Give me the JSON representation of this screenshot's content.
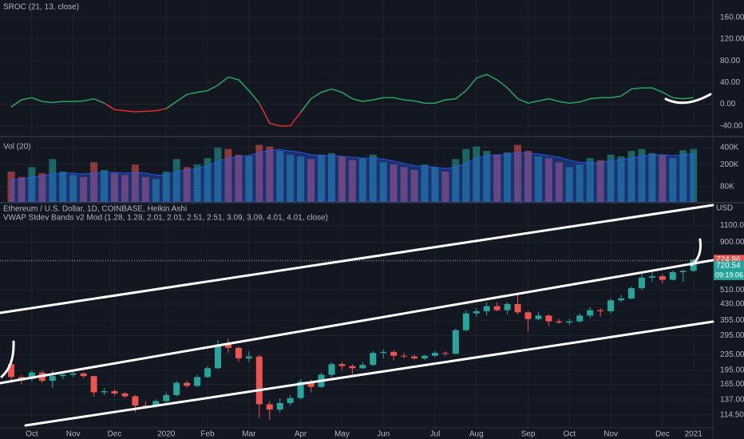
{
  "chart_data": [
    {
      "type": "line",
      "title": "SROC (21, 13, close)",
      "up_color": "#26a65b",
      "down_color": "#e0292b",
      "ylim": [
        -58,
        192
      ],
      "yticks": [
        {
          "value": 160,
          "label": "160.00"
        },
        {
          "value": 120,
          "label": "120.00"
        },
        {
          "value": 80,
          "label": "80.00"
        },
        {
          "value": 40,
          "label": "40.00"
        },
        {
          "value": 0,
          "label": "0.00"
        },
        {
          "value": -40,
          "label": "-40.00"
        }
      ],
      "grid": true,
      "values": [
        -5,
        8,
        12,
        5,
        3,
        5,
        5,
        6,
        10,
        2,
        -10,
        -12,
        -14,
        -13,
        -12,
        -8,
        5,
        18,
        22,
        25,
        35,
        50,
        45,
        25,
        2,
        -35,
        -40,
        -40,
        -15,
        10,
        22,
        28,
        22,
        10,
        5,
        8,
        12,
        12,
        8,
        6,
        2,
        2,
        8,
        10,
        25,
        48,
        55,
        45,
        30,
        10,
        2,
        6,
        10,
        5,
        2,
        4,
        10,
        12,
        12,
        15,
        28,
        30,
        30,
        22,
        12,
        10,
        12
      ]
    },
    {
      "type": "bar",
      "title": "Vol (20)",
      "log": true,
      "ylim": [
        43000,
        614000
      ],
      "yticks": [
        {
          "value": 400000,
          "label": "400K"
        },
        {
          "value": 200000,
          "label": "200K"
        },
        {
          "value": 80000,
          "label": "80K"
        }
      ],
      "grid": true,
      "up_color": "#26a69a",
      "down_color": "#ef5350",
      "ma_color": "#2962ff",
      "values": [
        150000,
        120000,
        180000,
        140000,
        250000,
        150000,
        130000,
        120000,
        220000,
        160000,
        140000,
        130000,
        200000,
        120000,
        110000,
        150000,
        250000,
        180000,
        200000,
        260000,
        400000,
        380000,
        300000,
        280000,
        450000,
        420000,
        350000,
        300000,
        280000,
        250000,
        300000,
        320000,
        280000,
        240000,
        260000,
        300000,
        220000,
        200000,
        180000,
        160000,
        200000,
        180000,
        150000,
        250000,
        380000,
        420000,
        350000,
        300000,
        330000,
        450000,
        350000,
        280000,
        260000,
        220000,
        180000,
        200000,
        260000,
        240000,
        300000,
        280000,
        350000,
        380000,
        320000,
        300000,
        260000,
        360000,
        380000
      ],
      "ma": [
        110000,
        110000,
        120000,
        125000,
        135000,
        140000,
        140000,
        135000,
        140000,
        145000,
        145000,
        140000,
        145000,
        140000,
        130000,
        130000,
        150000,
        160000,
        170000,
        190000,
        230000,
        260000,
        280000,
        290000,
        330000,
        360000,
        370000,
        350000,
        330000,
        300000,
        290000,
        290000,
        280000,
        270000,
        260000,
        260000,
        250000,
        230000,
        210000,
        190000,
        185000,
        180000,
        170000,
        180000,
        210000,
        260000,
        290000,
        300000,
        300000,
        330000,
        320000,
        310000,
        290000,
        270000,
        240000,
        220000,
        215000,
        220000,
        235000,
        245000,
        260000,
        280000,
        300000,
        300000,
        290000,
        300000,
        310000
      ]
    },
    {
      "type": "candlestick",
      "title": "Ethereum / U.S. Dollar, 1D, COINBASE, Heikin Ashi",
      "subtitle": "VWAP Stdev Bands v2 Mod (1.28, 1.28, 2.01, 2.01, 2.51, 2.51, 3.09, 3.09, 4.01, 4.01, close)",
      "currency": "USD",
      "log": true,
      "ylim": [
        100,
        1430
      ],
      "grid": true,
      "up_color": "#26a69a",
      "down_color": "#ef5350",
      "yticks": [
        {
          "value": 1100,
          "label": "1100.00"
        },
        {
          "value": 900,
          "label": "900.00"
        },
        {
          "value": 510,
          "label": "510.00"
        },
        {
          "value": 430,
          "label": "430.00"
        },
        {
          "value": 355,
          "label": "355.00"
        },
        {
          "value": 295,
          "label": "295.00"
        },
        {
          "value": 235,
          "label": "235.00"
        },
        {
          "value": 195,
          "label": "195.00"
        },
        {
          "value": 165,
          "label": "165.00"
        },
        {
          "value": 137,
          "label": "137.00"
        },
        {
          "value": 114.5,
          "label": "114.50"
        }
      ],
      "price_tags": [
        {
          "value": 724.86,
          "label": "724.86",
          "color": "#ef5350"
        },
        {
          "value": 720.54,
          "label": "720.54",
          "color": "#26a69a"
        }
      ],
      "countdown": "09:19:06",
      "categories": [
        null,
        null,
        "Oct",
        null,
        null,
        null,
        "Nov",
        null,
        null,
        null,
        "Dec",
        null,
        null,
        null,
        null,
        "2020",
        null,
        null,
        null,
        "Feb",
        null,
        null,
        null,
        "Mar",
        null,
        null,
        null,
        null,
        "Apr",
        null,
        null,
        null,
        "May",
        null,
        null,
        null,
        "Jun",
        null,
        null,
        null,
        null,
        "Jul",
        null,
        null,
        null,
        "Aug",
        null,
        null,
        null,
        null,
        "Sep",
        null,
        null,
        null,
        "Oct",
        null,
        null,
        null,
        "Nov",
        null,
        null,
        null,
        null,
        "Dec",
        null,
        null,
        "2021"
      ],
      "open": [
        210,
        180,
        176,
        190,
        172,
        182,
        185,
        188,
        182,
        150,
        152,
        148,
        143,
        128,
        127,
        135,
        145,
        168,
        162,
        180,
        200,
        265,
        255,
        225,
        230,
        130,
        122,
        132,
        140,
        170,
        160,
        185,
        210,
        205,
        200,
        208,
        240,
        243,
        232,
        230,
        225,
        232,
        240,
        238,
        315,
        385,
        395,
        420,
        400,
        430,
        390,
        360,
        375,
        350,
        345,
        350,
        375,
        400,
        395,
        450,
        460,
        520,
        590,
        600,
        575,
        630,
        640
      ],
      "high": [
        225,
        185,
        195,
        195,
        195,
        190,
        195,
        190,
        183,
        158,
        155,
        150,
        145,
        135,
        138,
        150,
        172,
        172,
        185,
        205,
        280,
        285,
        260,
        245,
        235,
        135,
        140,
        145,
        175,
        175,
        190,
        215,
        215,
        210,
        215,
        245,
        250,
        248,
        240,
        235,
        235,
        245,
        245,
        320,
        400,
        410,
        440,
        440,
        440,
        490,
        395,
        390,
        380,
        360,
        360,
        385,
        415,
        410,
        460,
        480,
        530,
        620,
        630,
        615,
        640,
        650,
        740
      ],
      "low": [
        168,
        165,
        170,
        168,
        158,
        175,
        180,
        178,
        142,
        145,
        144,
        140,
        118,
        124,
        125,
        132,
        143,
        158,
        160,
        178,
        198,
        240,
        215,
        215,
        110,
        108,
        118,
        128,
        138,
        150,
        158,
        180,
        195,
        185,
        198,
        205,
        225,
        220,
        225,
        222,
        220,
        228,
        232,
        236,
        310,
        370,
        375,
        395,
        380,
        380,
        310,
        355,
        330,
        340,
        335,
        345,
        365,
        370,
        385,
        440,
        455,
        510,
        560,
        550,
        570,
        560,
        630
      ],
      "close": [
        180,
        176,
        190,
        172,
        182,
        185,
        188,
        182,
        150,
        152,
        148,
        143,
        128,
        127,
        135,
        145,
        168,
        162,
        180,
        200,
        265,
        255,
        225,
        230,
        130,
        122,
        132,
        140,
        170,
        160,
        185,
        210,
        205,
        200,
        208,
        240,
        243,
        232,
        230,
        225,
        232,
        240,
        238,
        315,
        385,
        395,
        420,
        400,
        430,
        390,
        360,
        375,
        350,
        345,
        350,
        375,
        400,
        395,
        450,
        460,
        520,
        590,
        600,
        575,
        630,
        640,
        730
      ]
    }
  ]
}
